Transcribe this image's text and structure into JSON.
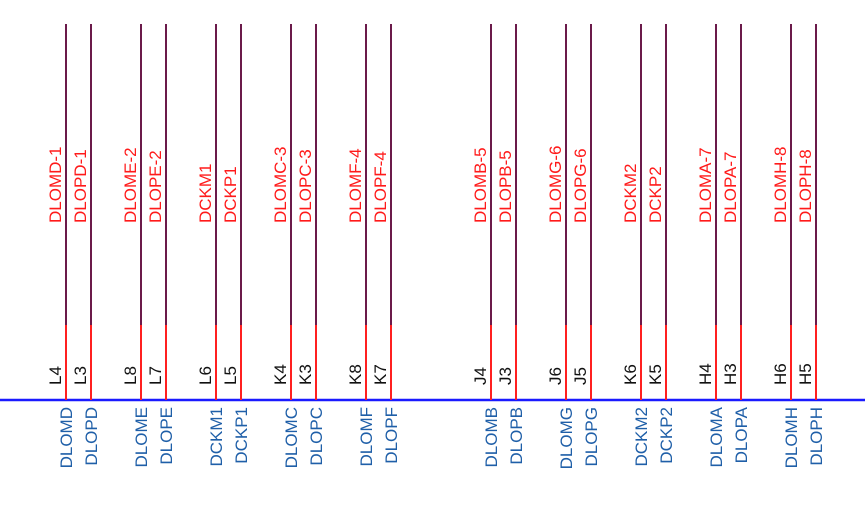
{
  "schematic": {
    "colors": {
      "wire_upper": "#6b1a4a",
      "wire_lower": "#ff2020",
      "bus": "#1a1aff",
      "net_label": "#ff1a1a",
      "pin_label": "#111111",
      "bus_label": "#1f5fa8"
    },
    "groups": [
      {
        "wires": [
          {
            "net": "DLOMD-1",
            "pin": "L4",
            "bus": "DLOMD"
          },
          {
            "net": "DLOPD-1",
            "pin": "L3",
            "bus": "DLOPD"
          }
        ]
      },
      {
        "wires": [
          {
            "net": "DLOME-2",
            "pin": "L8",
            "bus": "DLOME"
          },
          {
            "net": "DLOPE-2",
            "pin": "L7",
            "bus": "DLOPE"
          }
        ]
      },
      {
        "wires": [
          {
            "net": "DCKM1",
            "pin": "L6",
            "bus": "DCKM1"
          },
          {
            "net": "DCKP1",
            "pin": "L5",
            "bus": "DCKP1"
          }
        ]
      },
      {
        "wires": [
          {
            "net": "DLOMC-3",
            "pin": "K4",
            "bus": "DLOMC"
          },
          {
            "net": "DLOPC-3",
            "pin": "K3",
            "bus": "DLOPC"
          }
        ]
      },
      {
        "wires": [
          {
            "net": "DLOMF-4",
            "pin": "K8",
            "bus": "DLOMF"
          },
          {
            "net": "DLOPF-4",
            "pin": "K7",
            "bus": "DLOPF"
          }
        ]
      },
      {
        "wires": [
          {
            "net": "DLOMB-5",
            "pin": "J4",
            "bus": "DLOMB"
          },
          {
            "net": "DLOPB-5",
            "pin": "J3",
            "bus": "DLOPB"
          }
        ]
      },
      {
        "wires": [
          {
            "net": "DLOMG-6",
            "pin": "J6",
            "bus": "DLOMG"
          },
          {
            "net": "DLOPG-6",
            "pin": "J5",
            "bus": "DLOPG"
          }
        ]
      },
      {
        "wires": [
          {
            "net": "DCKM2",
            "pin": "K6",
            "bus": "DCKM2"
          },
          {
            "net": "DCKP2",
            "pin": "K5",
            "bus": "DCKP2"
          }
        ]
      },
      {
        "wires": [
          {
            "net": "DLOMA-7",
            "pin": "H4",
            "bus": "DLOMA"
          },
          {
            "net": "DLOPA-7",
            "pin": "H3",
            "bus": "DLOPA"
          }
        ]
      },
      {
        "wires": [
          {
            "net": "DLOMH-8",
            "pin": "H6",
            "bus": "DLOMH"
          },
          {
            "net": "DLOPH-8",
            "pin": "H5",
            "bus": "DLOPH"
          }
        ]
      }
    ]
  }
}
